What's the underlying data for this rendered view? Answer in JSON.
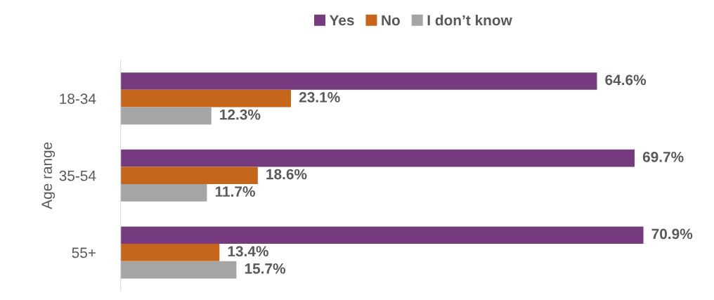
{
  "chart_data": {
    "type": "bar",
    "orientation": "horizontal",
    "ylabel": "Age range",
    "categories": [
      "18-34",
      "35-54",
      "55+"
    ],
    "legend": "top",
    "series": [
      {
        "name": "Yes",
        "color": "#763a7e",
        "values": [
          64.6,
          69.7,
          70.9
        ],
        "value_labels": [
          "64.6%",
          "69.7%",
          "70.9%"
        ]
      },
      {
        "name": "No",
        "color": "#c5661b",
        "values": [
          23.1,
          18.6,
          13.4
        ],
        "value_labels": [
          "23.1%",
          "18.6%",
          "13.4%"
        ]
      },
      {
        "name": "I don’t know",
        "color": "#a5a5a5",
        "values": [
          12.3,
          11.7,
          15.7
        ],
        "value_labels": [
          "12.3%",
          "11.7%",
          "15.7%"
        ]
      }
    ]
  }
}
